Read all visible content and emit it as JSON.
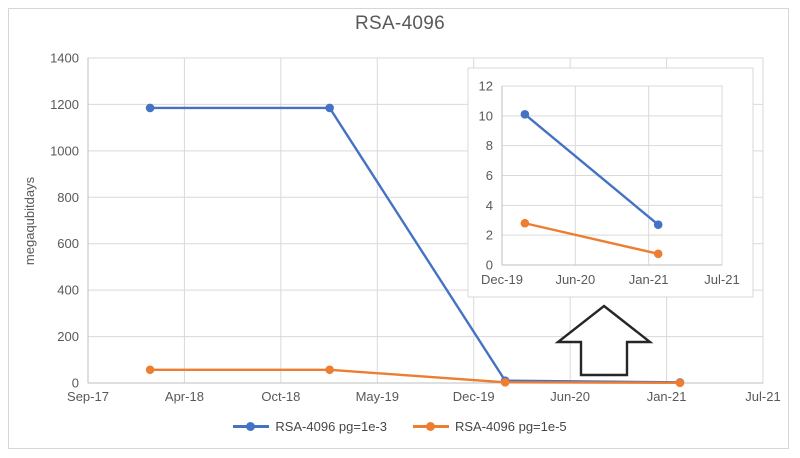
{
  "figure": {
    "title": "RSA-4096"
  },
  "colors": {
    "series_blue": "#4472C4",
    "series_orange": "#ED7D31",
    "grid": "#D9D9D9",
    "axis_line": "#BFBFBF",
    "axis_text": "#595959",
    "arrow_outline": "#262626",
    "inset_background": "#FFFFFF"
  },
  "legend": {
    "position": "bottom-center",
    "items": [
      {
        "label": "RSA-4096 pg=1e-3"
      },
      {
        "label": "RSA-4096 pg=1e-5"
      }
    ]
  },
  "chart_data": [
    {
      "type": "line",
      "role": "main-chart",
      "title": "RSA-4096",
      "xlabel": "",
      "ylabel": "megaqubitdays",
      "ylim": [
        0,
        1400
      ],
      "y_ticks": [
        0,
        200,
        400,
        600,
        800,
        1000,
        1200,
        1400
      ],
      "x_tick_labels": [
        "Sep-17",
        "Apr-18",
        "Oct-18",
        "May-19",
        "Dec-19",
        "Jun-20",
        "Jan-21",
        "Jul-21"
      ],
      "grid": true,
      "legend_position": "bottom",
      "series": [
        {
          "name": "RSA-4096 pg=1e-3",
          "color": "#4472C4",
          "points": [
            {
              "date": "Feb-18",
              "x_frac": 0.092,
              "y": 1185
            },
            {
              "date": "Jan-19",
              "x_frac": 0.358,
              "y": 1185
            },
            {
              "date": "Feb-20",
              "x_frac": 0.618,
              "y": 10.1
            },
            {
              "date": "Feb-21",
              "x_frac": 0.877,
              "y": 2.7
            }
          ]
        },
        {
          "name": "RSA-4096 pg=1e-5",
          "color": "#ED7D31",
          "points": [
            {
              "date": "Feb-18",
              "x_frac": 0.092,
              "y": 57
            },
            {
              "date": "Jan-19",
              "x_frac": 0.358,
              "y": 57
            },
            {
              "date": "Feb-20",
              "x_frac": 0.618,
              "y": 2.8
            },
            {
              "date": "Feb-21",
              "x_frac": 0.877,
              "y": 0.75
            }
          ]
        }
      ]
    },
    {
      "type": "line",
      "role": "inset-zoom-chart",
      "title": "",
      "xlabel": "",
      "ylabel": "",
      "ylim": [
        0,
        12
      ],
      "y_ticks": [
        0,
        2,
        4,
        6,
        8,
        10,
        12
      ],
      "x_tick_labels": [
        "Dec-19",
        "Jun-20",
        "Jan-21",
        "Jul-21"
      ],
      "grid": true,
      "series": [
        {
          "name": "RSA-4096 pg=1e-3",
          "color": "#4472C4",
          "points": [
            {
              "date": "Feb-20",
              "x_frac": 0.104,
              "y": 10.1
            },
            {
              "date": "Feb-21",
              "x_frac": 0.71,
              "y": 2.7
            }
          ]
        },
        {
          "name": "RSA-4096 pg=1e-5",
          "color": "#ED7D31",
          "points": [
            {
              "date": "Feb-20",
              "x_frac": 0.104,
              "y": 2.8
            },
            {
              "date": "Feb-21",
              "x_frac": 0.71,
              "y": 0.75
            }
          ]
        }
      ]
    }
  ]
}
